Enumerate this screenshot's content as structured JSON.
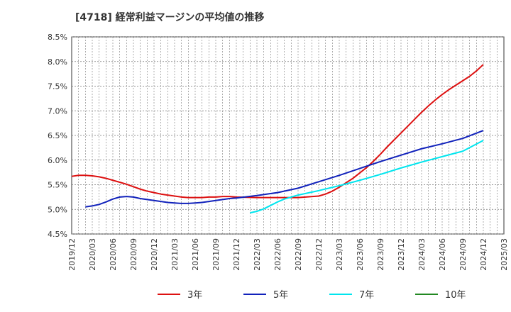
{
  "chart_data": {
    "type": "line",
    "title": "[4718]  経常利益マージンの平均値の推移",
    "xlabel": "",
    "ylabel": "",
    "ylim": [
      4.5,
      8.5
    ],
    "yticks": [
      "4.5%",
      "5.0%",
      "5.5%",
      "6.0%",
      "6.5%",
      "7.0%",
      "7.5%",
      "8.0%",
      "8.5%"
    ],
    "xticks": [
      "2019/12",
      "2020/03",
      "2020/06",
      "2020/09",
      "2020/12",
      "2021/03",
      "2021/06",
      "2021/09",
      "2021/12",
      "2022/03",
      "2022/06",
      "2022/09",
      "2022/12",
      "2023/03",
      "2023/06",
      "2023/09",
      "2023/12",
      "2024/03",
      "2024/06",
      "2024/09",
      "2024/12",
      "2025/03"
    ],
    "grid": true,
    "legend_position": "bottom",
    "series": [
      {
        "name": "3年",
        "color": "#dd1111",
        "points": [
          [
            "2019/12",
            5.67
          ],
          [
            "2020/01",
            5.69
          ],
          [
            "2020/02",
            5.69
          ],
          [
            "2020/03",
            5.68
          ],
          [
            "2020/04",
            5.66
          ],
          [
            "2020/05",
            5.63
          ],
          [
            "2020/06",
            5.59
          ],
          [
            "2020/07",
            5.55
          ],
          [
            "2020/08",
            5.51
          ],
          [
            "2020/09",
            5.46
          ],
          [
            "2020/10",
            5.41
          ],
          [
            "2020/11",
            5.37
          ],
          [
            "2020/12",
            5.34
          ],
          [
            "2021/01",
            5.31
          ],
          [
            "2021/02",
            5.29
          ],
          [
            "2021/03",
            5.27
          ],
          [
            "2021/04",
            5.25
          ],
          [
            "2021/05",
            5.24
          ],
          [
            "2021/06",
            5.24
          ],
          [
            "2021/07",
            5.24
          ],
          [
            "2021/08",
            5.25
          ],
          [
            "2021/09",
            5.25
          ],
          [
            "2021/10",
            5.26
          ],
          [
            "2021/11",
            5.26
          ],
          [
            "2021/12",
            5.25
          ],
          [
            "2022/03",
            5.24
          ],
          [
            "2022/06",
            5.24
          ],
          [
            "2022/09",
            5.24
          ],
          [
            "2022/12",
            5.27
          ],
          [
            "2023/01",
            5.31
          ],
          [
            "2023/02",
            5.37
          ],
          [
            "2023/03",
            5.45
          ],
          [
            "2023/04",
            5.54
          ],
          [
            "2023/05",
            5.63
          ],
          [
            "2023/06",
            5.74
          ],
          [
            "2023/07",
            5.85
          ],
          [
            "2023/08",
            5.98
          ],
          [
            "2023/09",
            6.12
          ],
          [
            "2023/10",
            6.27
          ],
          [
            "2023/11",
            6.41
          ],
          [
            "2023/12",
            6.55
          ],
          [
            "2024/01",
            6.69
          ],
          [
            "2024/02",
            6.83
          ],
          [
            "2024/03",
            6.97
          ],
          [
            "2024/04",
            7.1
          ],
          [
            "2024/05",
            7.22
          ],
          [
            "2024/06",
            7.33
          ],
          [
            "2024/07",
            7.43
          ],
          [
            "2024/08",
            7.52
          ],
          [
            "2024/09",
            7.61
          ],
          [
            "2024/10",
            7.7
          ],
          [
            "2024/11",
            7.81
          ],
          [
            "2024/12",
            7.94
          ]
        ]
      },
      {
        "name": "5年",
        "color": "#1122bb",
        "points": [
          [
            "2020/02",
            5.05
          ],
          [
            "2020/03",
            5.07
          ],
          [
            "2020/04",
            5.1
          ],
          [
            "2020/05",
            5.15
          ],
          [
            "2020/06",
            5.21
          ],
          [
            "2020/07",
            5.25
          ],
          [
            "2020/08",
            5.26
          ],
          [
            "2020/09",
            5.25
          ],
          [
            "2020/10",
            5.22
          ],
          [
            "2020/11",
            5.2
          ],
          [
            "2020/12",
            5.18
          ],
          [
            "2021/01",
            5.16
          ],
          [
            "2021/02",
            5.14
          ],
          [
            "2021/03",
            5.13
          ],
          [
            "2021/04",
            5.12
          ],
          [
            "2021/05",
            5.12
          ],
          [
            "2021/06",
            5.13
          ],
          [
            "2021/07",
            5.14
          ],
          [
            "2021/08",
            5.16
          ],
          [
            "2021/09",
            5.18
          ],
          [
            "2021/10",
            5.2
          ],
          [
            "2021/11",
            5.22
          ],
          [
            "2021/12",
            5.23
          ],
          [
            "2022/03",
            5.28
          ],
          [
            "2022/06",
            5.34
          ],
          [
            "2022/09",
            5.43
          ],
          [
            "2022/12",
            5.56
          ],
          [
            "2023/03",
            5.69
          ],
          [
            "2023/06",
            5.83
          ],
          [
            "2023/09",
            5.97
          ],
          [
            "2023/12",
            6.1
          ],
          [
            "2024/03",
            6.23
          ],
          [
            "2024/06",
            6.33
          ],
          [
            "2024/09",
            6.44
          ],
          [
            "2024/12",
            6.6
          ]
        ]
      },
      {
        "name": "7年",
        "color": "#00e5ee",
        "points": [
          [
            "2022/02",
            4.93
          ],
          [
            "2022/03",
            4.96
          ],
          [
            "2022/04",
            5.01
          ],
          [
            "2022/05",
            5.08
          ],
          [
            "2022/06",
            5.15
          ],
          [
            "2022/07",
            5.21
          ],
          [
            "2022/08",
            5.25
          ],
          [
            "2022/09",
            5.29
          ],
          [
            "2022/12",
            5.38
          ],
          [
            "2023/03",
            5.48
          ],
          [
            "2023/06",
            5.59
          ],
          [
            "2023/09",
            5.71
          ],
          [
            "2023/12",
            5.84
          ],
          [
            "2024/03",
            5.96
          ],
          [
            "2024/06",
            6.07
          ],
          [
            "2024/09",
            6.18
          ],
          [
            "2024/12",
            6.4
          ]
        ]
      },
      {
        "name": "10年",
        "color": "#228822",
        "points": []
      }
    ]
  }
}
